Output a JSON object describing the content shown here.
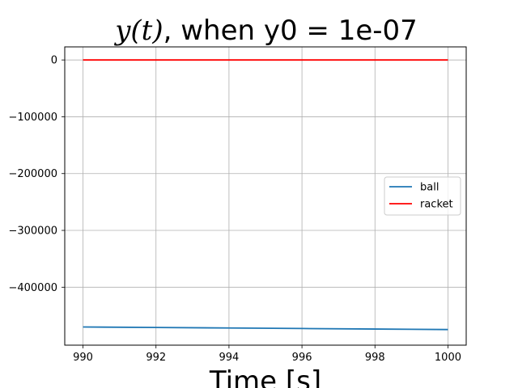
{
  "chart_data": {
    "type": "line",
    "title": {
      "math": "y(t)",
      "rest": ", when y0 = 1e-07"
    },
    "xlabel": "Time [s]",
    "ylabel": "",
    "xlim": [
      989.5,
      1000.5
    ],
    "ylim": [
      -502000,
      23000
    ],
    "grid": true,
    "legend_position": "center-right",
    "x_ticks": [
      990,
      992,
      994,
      996,
      998,
      1000
    ],
    "x_tick_labels": [
      "990",
      "992",
      "994",
      "996",
      "998",
      "1000"
    ],
    "y_ticks": [
      0,
      -100000,
      -200000,
      -300000,
      -400000
    ],
    "y_tick_labels": [
      "0",
      "−100000",
      "−200000",
      "−300000",
      "−400000"
    ],
    "series": [
      {
        "name": "ball",
        "color": "#1f77b4",
        "x": [
          990,
          992,
          994,
          996,
          998,
          1000
        ],
        "y": [
          -470000,
          -470900,
          -471800,
          -472700,
          -473600,
          -474500
        ]
      },
      {
        "name": "racket",
        "color": "#ff0000",
        "x": [
          990,
          992,
          994,
          996,
          998,
          1000
        ],
        "y": [
          0,
          0,
          0,
          0,
          0,
          0
        ]
      }
    ]
  }
}
